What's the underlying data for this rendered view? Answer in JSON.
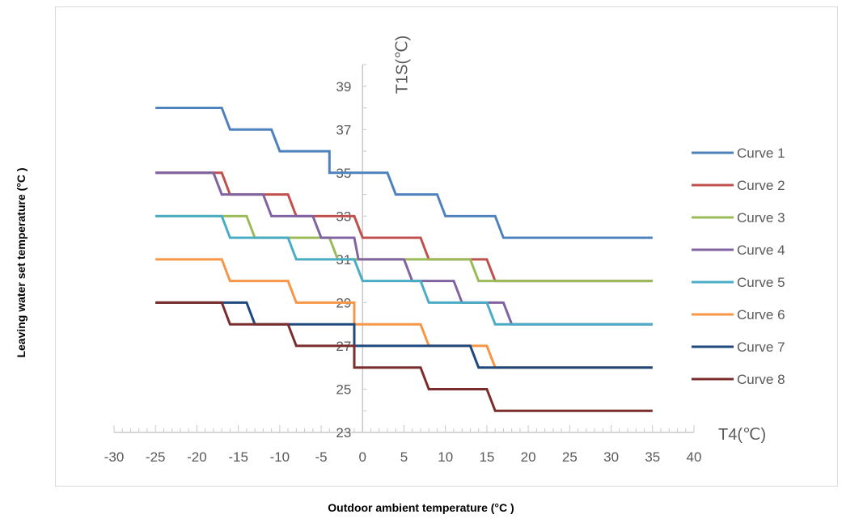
{
  "chart_data": {
    "type": "line",
    "title": "",
    "xlabel": "Outdoor ambient temperature (°C )",
    "ylabel": "Leaving water set temperature (°C )",
    "x_axis_name": "T4(℃)",
    "y_axis_name": "T1S(℃)",
    "xlim": [
      -30,
      40
    ],
    "ylim": [
      23,
      40
    ],
    "x_ticks": [
      -30,
      -25,
      -20,
      -15,
      -10,
      -5,
      0,
      5,
      10,
      15,
      20,
      25,
      30,
      35,
      40
    ],
    "y_ticks": [
      23,
      25,
      27,
      29,
      31,
      33,
      35,
      37,
      39
    ],
    "legend_position": "right",
    "grid": false,
    "series": [
      {
        "name": "Curve 1",
        "color": "#4F81BD",
        "x": [
          -25,
          -17,
          -16,
          -11,
          -10,
          -4,
          -4,
          3,
          4,
          9,
          10,
          16,
          17,
          35
        ],
        "y": [
          38,
          38,
          37,
          37,
          36,
          36,
          35,
          35,
          34,
          34,
          33,
          33,
          32,
          32
        ]
      },
      {
        "name": "Curve 2",
        "color": "#C0504D",
        "x": [
          -25,
          -17,
          -16,
          -9,
          -8,
          -1,
          0,
          7,
          8,
          15,
          16,
          35
        ],
        "y": [
          35,
          35,
          34,
          34,
          33,
          33,
          32,
          32,
          31,
          31,
          30,
          30
        ]
      },
      {
        "name": "Curve 3",
        "color": "#9BBB59",
        "x": [
          -25,
          -14,
          -13,
          -4,
          -3,
          13,
          14,
          35
        ],
        "y": [
          33,
          33,
          32,
          32,
          31,
          31,
          30,
          30
        ]
      },
      {
        "name": "Curve 4",
        "color": "#8064A2",
        "x": [
          -25,
          -18,
          -17,
          -12,
          -11,
          -6,
          -5,
          -1,
          -0.5,
          5,
          6,
          11,
          12,
          17,
          18,
          35
        ],
        "y": [
          35,
          35,
          34,
          34,
          33,
          33,
          32,
          32,
          31,
          31,
          30,
          30,
          29,
          29,
          28,
          28
        ]
      },
      {
        "name": "Curve 5",
        "color": "#4BACC6",
        "x": [
          -25,
          -17,
          -16,
          -9,
          -8,
          -1,
          0,
          7,
          8,
          15,
          16,
          35
        ],
        "y": [
          33,
          33,
          32,
          32,
          31,
          31,
          30,
          30,
          29,
          29,
          28,
          28
        ]
      },
      {
        "name": "Curve 6",
        "color": "#F79646",
        "x": [
          -25,
          -17,
          -16,
          -9,
          -8,
          -1,
          -1,
          7,
          8,
          15,
          16,
          35
        ],
        "y": [
          31,
          31,
          30,
          30,
          29,
          29,
          28,
          28,
          27,
          27,
          26,
          26
        ]
      },
      {
        "name": "Curve 7",
        "color": "#1F497D",
        "x": [
          -25,
          -14,
          -13,
          -1,
          -1,
          13,
          14,
          35
        ],
        "y": [
          29,
          29,
          28,
          28,
          27,
          27,
          26,
          26
        ]
      },
      {
        "name": "Curve 8",
        "color": "#7B2C2C",
        "x": [
          -25,
          -17,
          -16,
          -9,
          -8,
          -1,
          -1,
          7,
          8,
          15,
          16,
          35
        ],
        "y": [
          29,
          29,
          28,
          28,
          27,
          27,
          26,
          26,
          25,
          25,
          24,
          24
        ]
      }
    ]
  }
}
